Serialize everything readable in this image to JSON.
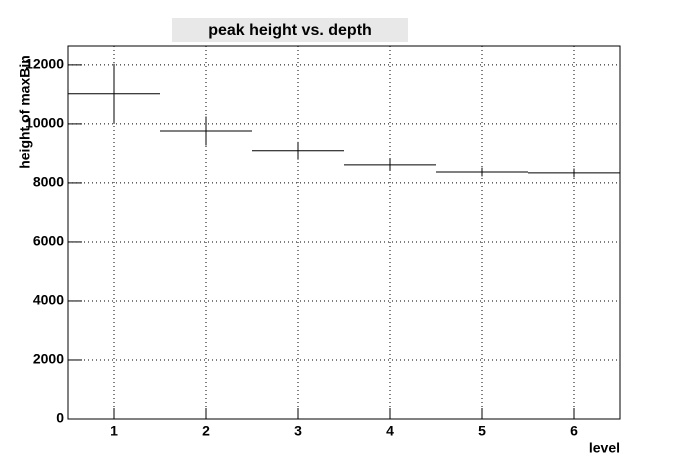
{
  "chart_data": {
    "type": "histogram",
    "title": "peak height vs. depth",
    "x_label": "level",
    "y_label": "height of maxBin",
    "bins": [
      0.5,
      1.5,
      2.5,
      3.5,
      4.5,
      5.5,
      6.5
    ],
    "values": [
      11020,
      9760,
      9090,
      8610,
      8370,
      8340
    ],
    "errors": [
      1020,
      490,
      300,
      200,
      150,
      150
    ],
    "color": "#000000",
    "xlim": [
      0.5,
      6.5
    ],
    "xticks": [
      1,
      2,
      3,
      4,
      5,
      6
    ],
    "ylim": [
      0,
      12640
    ],
    "yticks": [
      0,
      2000,
      4000,
      6000,
      8000,
      10000,
      12000
    ],
    "grid": true
  }
}
